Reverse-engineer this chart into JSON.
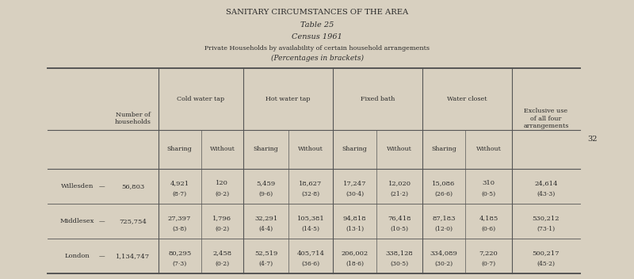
{
  "title1": "SANITARY CIRCUMSTANCES OF THE AREA",
  "title2": "Table 25",
  "title3": "Census 1961",
  "title4": "Private Households by availability of certain household arrangements",
  "title5": "(Percentages in brackets)",
  "bg_color": "#d8d0c0",
  "text_color": "#2a2a2a",
  "rows": [
    {
      "name": "Willesden",
      "num": "56,803",
      "cold_share": "4,921",
      "cold_share_p": "(8·7)",
      "cold_without": "120",
      "cold_without_p": "(0·2)",
      "hot_share": "5,459",
      "hot_share_p": "(9·6)",
      "hot_without": "18,627",
      "hot_without_p": "(32·8)",
      "bath_share": "17,247",
      "bath_share_p": "(30·4)",
      "bath_without": "12,020",
      "bath_without_p": "(21·2)",
      "wc_share": "15,086",
      "wc_share_p": "(26·6)",
      "wc_without": "310",
      "wc_without_p": "(0·5)",
      "excl": "24,614",
      "excl_p": "(43·3)"
    },
    {
      "name": "Middlesex",
      "num": "725,754",
      "cold_share": "27,397",
      "cold_share_p": "(3·8)",
      "cold_without": "1,796",
      "cold_without_p": "(0·2)",
      "hot_share": "32,291",
      "hot_share_p": "(4·4)",
      "hot_without": "105,381",
      "hot_without_p": "(14·5)",
      "bath_share": "94,818",
      "bath_share_p": "(13·1)",
      "bath_without": "76,418",
      "bath_without_p": "(10·5)",
      "wc_share": "87,183",
      "wc_share_p": "(12·0)",
      "wc_without": "4,185",
      "wc_without_p": "(0·6)",
      "excl": "530,212",
      "excl_p": "(73·1)"
    },
    {
      "name": "London",
      "num": "1,134,747",
      "cold_share": "80,295",
      "cold_share_p": "(7·3)",
      "cold_without": "2,458",
      "cold_without_p": "(0·2)",
      "hot_share": "52,519",
      "hot_share_p": "(4·7)",
      "hot_without": "405,714",
      "hot_without_p": "(36·6)",
      "bath_share": "206,002",
      "bath_share_p": "(18·6)",
      "bath_without": "338,128",
      "bath_without_p": "(30·5)",
      "wc_share": "334,089",
      "wc_share_p": "(30·2)",
      "wc_without": "7,220",
      "wc_without_p": "(0·7)",
      "excl": "500,217",
      "excl_p": "(45·2)"
    }
  ]
}
